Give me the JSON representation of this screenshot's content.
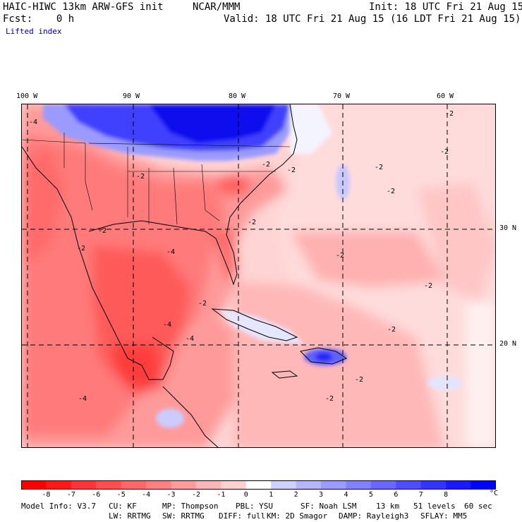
{
  "header": {
    "model": "HAIC-HIWC 13km ARW-GFS init",
    "org": "NCAR/MMM",
    "init": "Init: 18 UTC Fri 21 Aug 15",
    "fcst": "Fcst:    0 h",
    "valid": "Valid: 18 UTC Fri 21 Aug 15 (16 LDT Fri 21 Aug 15)",
    "field": "Lifted index"
  },
  "map": {
    "lon_labels": [
      "100 W",
      "90 W",
      "80 W",
      "70 W",
      "60 W"
    ],
    "lat_labels": [
      "30 N",
      "20 N"
    ],
    "contour_label": "-2",
    "contour_label_neg4": "-4"
  },
  "colorbar": {
    "tick_labels": [
      "-8",
      "-7",
      "-6",
      "-5",
      "-4",
      "-3",
      "-2",
      "-1",
      "0",
      "1",
      "2",
      "3",
      "4",
      "5",
      "6",
      "7",
      "8"
    ],
    "unit": "°C",
    "colors": [
      "#ff0000",
      "#ff1a1a",
      "#ff3434",
      "#ff4e4e",
      "#ff6868",
      "#ff8282",
      "#ff9c9c",
      "#ffb6b6",
      "#ffd0d0",
      "#ffffff",
      "#d0d0ff",
      "#b6b6ff",
      "#9c9cff",
      "#8282ff",
      "#6868ff",
      "#4e4eff",
      "#3434ff",
      "#1a1aff",
      "#0000ff"
    ]
  },
  "footer": {
    "line1": [
      "Model Info: V3.7",
      "CU: KF",
      "MP: Thompson",
      "PBL: YSU",
      "SF: Noah LSM",
      "13 km",
      "51 levels",
      "60 sec"
    ],
    "line2": [
      "LW: RRTMG",
      "SW: RRTMG",
      "DIFF: full",
      "KM: 2D Smagor",
      "DAMP: Rayleigh3",
      "SFLAY: MM5"
    ]
  }
}
